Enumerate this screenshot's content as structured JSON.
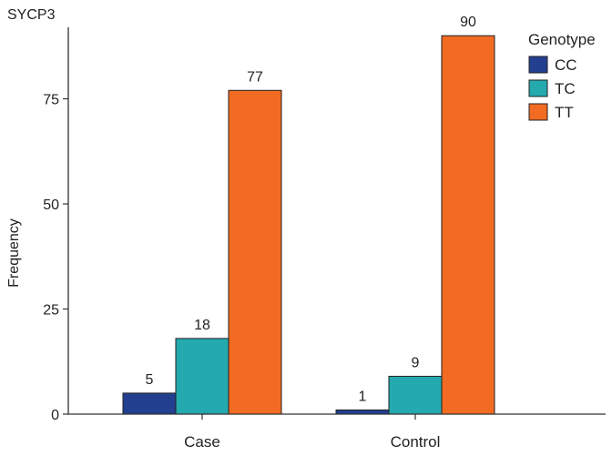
{
  "chart_data": {
    "type": "bar",
    "title": "SYCP3",
    "xlabel": "",
    "ylabel": "Frequency",
    "categories": [
      "Case",
      "Control"
    ],
    "series": [
      {
        "name": "CC",
        "color": "#233f8f",
        "values": [
          5,
          1
        ]
      },
      {
        "name": "TC",
        "color": "#24a9ae",
        "values": [
          18,
          9
        ]
      },
      {
        "name": "TT",
        "color": "#f26b22",
        "values": [
          77,
          90
        ]
      }
    ],
    "ylim": [
      0,
      92
    ],
    "yticks": [
      0,
      25,
      50,
      75
    ],
    "legend": {
      "title": "Genotype",
      "position": "top-right"
    },
    "grid": false
  }
}
